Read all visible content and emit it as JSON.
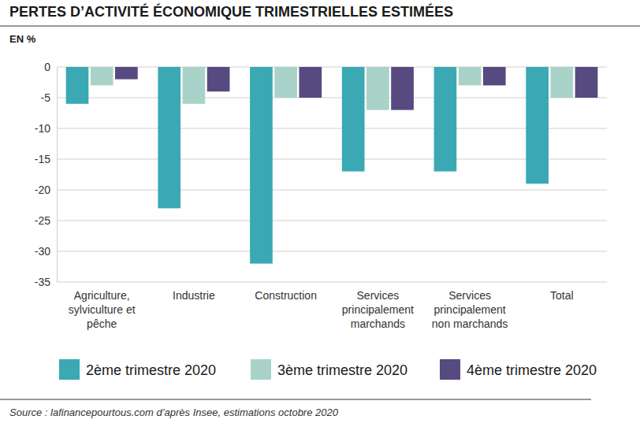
{
  "chart_data": {
    "type": "bar",
    "title": "PERTES D’ACTIVITÉ ÉCONOMIQUE TRIMESTRIELLES ESTIMÉES",
    "y_label": "EN %",
    "source": "Source : lafinancepourtous.com d’après Insee, estimations octobre 2020",
    "categories": [
      "Agriculture, sylviculture et pêche",
      "Industrie",
      "Construction",
      "Services principalement marchands",
      "Services principalement non marchands",
      "Total"
    ],
    "series": [
      {
        "name": "2ème trimestre 2020",
        "color": "#3aa9b3",
        "values": [
          -6,
          -23,
          -32,
          -17,
          -17,
          -19
        ]
      },
      {
        "name": "3ème trimestre 2020",
        "color": "#a9d3c8",
        "values": [
          -3,
          -6,
          -5,
          -7,
          -3,
          -5
        ]
      },
      {
        "name": "4ème trimestre 2020",
        "color": "#574a80",
        "values": [
          -2,
          -4,
          -5,
          -7,
          -3,
          -5
        ]
      }
    ],
    "ylim": [
      -35,
      0
    ],
    "yticks": [
      -35,
      -30,
      -25,
      -20,
      -15,
      -10,
      -5,
      0
    ],
    "grid": true,
    "legend": "bottom"
  }
}
